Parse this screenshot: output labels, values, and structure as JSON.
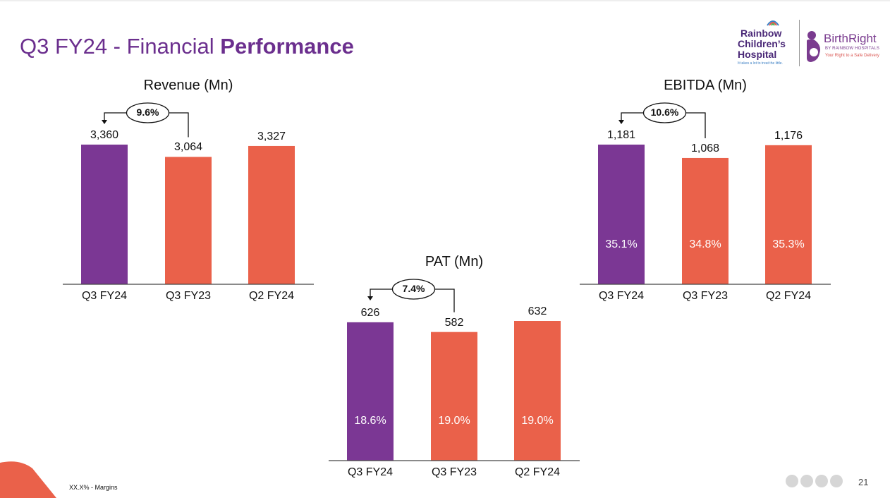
{
  "slide": {
    "title_prefix": "Q3 FY24 - Financial ",
    "title_bold": "Performance",
    "footnote": "XX.X% - Margins",
    "page_number": "21",
    "nav_dots": 4
  },
  "logos": {
    "rainbow": {
      "line1": "Rainbow",
      "line2": "Children’s",
      "line3": "Hospital",
      "tagline": "It takes a lot to treat the little."
    },
    "birthright": {
      "name": "BirthRight",
      "sub": "BY RAINBOW HOSPITALS",
      "tagline": "Your Right to a Safe Delivery"
    }
  },
  "colors": {
    "title": "#6b2f8e",
    "current_bar": "#7b3794",
    "other_bar": "#ea614a",
    "corner": "#ea614a"
  },
  "chart_data": [
    {
      "type": "bar",
      "title": "Revenue (Mn)",
      "categories": [
        "Q3 FY24",
        "Q3 FY23",
        "Q2 FY24"
      ],
      "values": [
        3360,
        3064,
        3327
      ],
      "value_labels": [
        "3,360",
        "3,064",
        "3,327"
      ],
      "growth": "9.6%"
    },
    {
      "type": "bar",
      "title": "EBITDA (Mn)",
      "categories": [
        "Q3 FY24",
        "Q3 FY23",
        "Q2 FY24"
      ],
      "values": [
        1181,
        1068,
        1176
      ],
      "value_labels": [
        "1,181",
        "1,068",
        "1,176"
      ],
      "margins": [
        "35.1%",
        "34.8%",
        "35.3%"
      ],
      "growth": "10.6%"
    },
    {
      "type": "bar",
      "title": "PAT (Mn)",
      "categories": [
        "Q3 FY24",
        "Q3 FY23",
        "Q2 FY24"
      ],
      "values": [
        626,
        582,
        632
      ],
      "value_labels": [
        "626",
        "582",
        "632"
      ],
      "margins": [
        "18.6%",
        "19.0%",
        "19.0%"
      ],
      "growth": "7.4%"
    }
  ]
}
